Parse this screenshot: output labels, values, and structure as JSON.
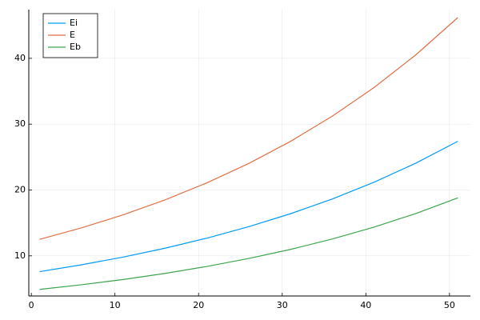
{
  "chart_data": {
    "type": "line",
    "x": [
      1,
      6,
      11,
      16,
      21,
      26,
      31,
      36,
      41,
      46,
      51
    ],
    "series": [
      {
        "name": "Ei",
        "color": "#009af9",
        "values": [
          7.6,
          8.64,
          9.82,
          11.16,
          12.69,
          14.43,
          16.4,
          18.64,
          21.19,
          24.09,
          27.4
        ]
      },
      {
        "name": "E",
        "color": "#e26f46",
        "values": [
          12.5,
          14.25,
          16.24,
          18.5,
          21.09,
          24.03,
          27.39,
          31.22,
          35.58,
          40.55,
          46.2
        ]
      },
      {
        "name": "Eb",
        "color": "#3da44d",
        "values": [
          4.9,
          5.61,
          6.41,
          7.33,
          8.39,
          9.6,
          10.98,
          12.56,
          14.37,
          16.44,
          18.8
        ]
      }
    ],
    "xlim": [
      -0.3,
      52.5
    ],
    "xticks": [
      0,
      10,
      20,
      30,
      40,
      50
    ],
    "ylim": [
      3.9,
      47.4
    ],
    "yticks": [
      10,
      20,
      30,
      40
    ],
    "grid": true,
    "legend": "top-left"
  }
}
